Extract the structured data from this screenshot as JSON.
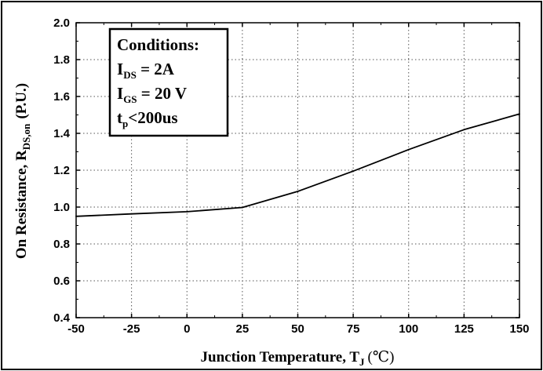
{
  "chart_data": {
    "type": "line",
    "title": "",
    "xlabel": "Junction Temperature, T",
    "xlabel_sub": "J",
    "xlabel_unit": "(℃)",
    "ylabel": "On Resistance, R",
    "ylabel_sub": "DS,on",
    "ylabel_unit": "(P.U.)",
    "xlim": [
      -50,
      150
    ],
    "ylim": [
      0.4,
      2.0
    ],
    "x_ticks": [
      "-50",
      "-25",
      "0",
      "25",
      "50",
      "75",
      "100",
      "125",
      "150"
    ],
    "y_ticks": [
      "0.4",
      "0.6",
      "0.8",
      "1.0",
      "1.2",
      "1.4",
      "1.6",
      "1.8",
      "2.0"
    ],
    "grid": true,
    "series": [
      {
        "name": "R_DS,on",
        "color": "#000000",
        "x": [
          -50,
          -25,
          0,
          25,
          50,
          75,
          100,
          125,
          150
        ],
        "y": [
          0.95,
          0.963,
          0.975,
          0.998,
          1.085,
          1.195,
          1.312,
          1.42,
          1.505
        ]
      }
    ],
    "annotation": {
      "heading": "Conditions:",
      "lines": [
        {
          "main": "I",
          "sub": "DS",
          "rest": " = 2A"
        },
        {
          "main": "I",
          "sub": "GS",
          "rest": " = 20 V"
        },
        {
          "main": "t",
          "sub": "p",
          "rest": "<200us"
        }
      ]
    }
  }
}
